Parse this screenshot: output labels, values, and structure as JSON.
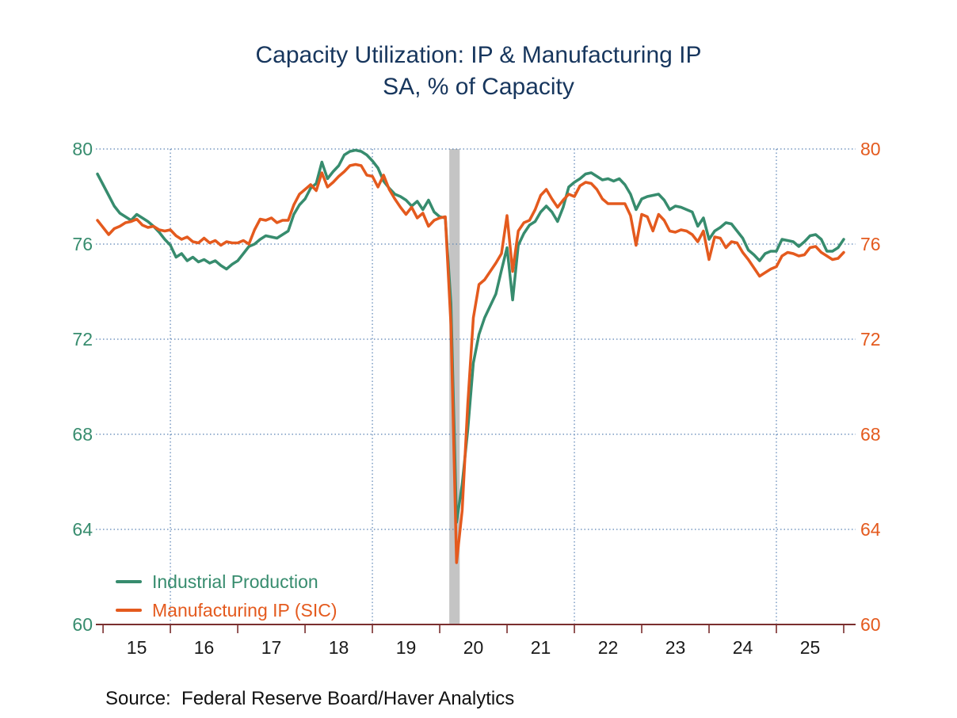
{
  "title": {
    "line1": "Capacity Utilization: IP & Manufacturing IP",
    "line2": "SA, % of Capacity"
  },
  "source_note": "Source:  Federal Reserve Board/Haver Analytics",
  "colors": {
    "title": "#17365D",
    "axis": "#7A2E2E",
    "gridline": "#5A82B4",
    "recession_band": "#C4C4C4",
    "x_tick_label": "#1A1A1A",
    "left_axis_label": "#378C6E",
    "right_axis_label": "#E45A1E",
    "series_ip": "#378C6E",
    "series_mfg": "#E45A1E"
  },
  "legend": [
    {
      "label": "Industrial Production",
      "color": "#378C6E"
    },
    {
      "label": "Manufacturing IP (SIC)",
      "color": "#E45A1E"
    }
  ],
  "chart_data": {
    "type": "line",
    "title": "Capacity Utilization: IP & Manufacturing IP",
    "subtitle": "SA, % of Capacity",
    "frequency": "monthly",
    "x_start": "2014-12",
    "x_end": "2026-01",
    "ylim": [
      60,
      80
    ],
    "y_ticks_left": [
      "80",
      "76",
      "72",
      "68",
      "64",
      "60"
    ],
    "y_ticks_right": [
      "80",
      "76",
      "72",
      "68",
      "64",
      "60"
    ],
    "y_tick_values": [
      80,
      76,
      72,
      68,
      64,
      60
    ],
    "x_tick_labels": [
      "15",
      "16",
      "17",
      "18",
      "19",
      "20",
      "21",
      "22",
      "23",
      "24",
      "25"
    ],
    "grid": {
      "h_values": [
        80,
        76,
        72,
        68,
        64
      ],
      "v_years": [
        2016,
        2019,
        2022,
        2025
      ],
      "style": "dotted"
    },
    "recession_band": {
      "from": "2020-02",
      "to": "2020-04"
    },
    "legend_position": "bottom-left-inside",
    "series": [
      {
        "name": "Industrial Production",
        "color": "#378C6E",
        "values": [
          78.95,
          78.5,
          78.05,
          77.6,
          77.3,
          77.15,
          77.0,
          77.25,
          77.1,
          76.95,
          76.75,
          76.5,
          76.2,
          75.95,
          75.45,
          75.6,
          75.3,
          75.45,
          75.25,
          75.35,
          75.2,
          75.3,
          75.1,
          74.95,
          75.15,
          75.3,
          75.6,
          75.9,
          76.0,
          76.2,
          76.35,
          76.3,
          76.25,
          76.4,
          76.55,
          77.25,
          77.65,
          77.9,
          78.35,
          78.55,
          79.45,
          78.75,
          79.05,
          79.3,
          79.75,
          79.9,
          79.95,
          79.9,
          79.75,
          79.5,
          79.2,
          78.65,
          78.35,
          78.1,
          78.0,
          77.85,
          77.6,
          77.8,
          77.45,
          77.85,
          77.35,
          77.15,
          77.1,
          73.5,
          64.3,
          65.9,
          68.2,
          71.0,
          72.2,
          72.9,
          73.4,
          73.9,
          74.9,
          75.85,
          73.65,
          75.95,
          76.45,
          76.8,
          76.95,
          77.35,
          77.6,
          77.35,
          76.95,
          77.55,
          78.4,
          78.6,
          78.75,
          78.95,
          79.0,
          78.85,
          78.7,
          78.75,
          78.65,
          78.75,
          78.5,
          78.1,
          77.45,
          77.9,
          78.0,
          78.05,
          78.1,
          77.85,
          77.45,
          77.6,
          77.55,
          77.45,
          77.35,
          76.75,
          77.1,
          76.2,
          76.55,
          76.7,
          76.9,
          76.85,
          76.55,
          76.25,
          75.75,
          75.55,
          75.3,
          75.6,
          75.7,
          75.7,
          76.2,
          76.15,
          76.1,
          75.9,
          76.1,
          76.35,
          76.4,
          76.2,
          75.7,
          75.7,
          75.85,
          76.2
        ]
      },
      {
        "name": "Manufacturing IP (SIC)",
        "color": "#E45A1E",
        "values": [
          77.0,
          76.7,
          76.4,
          76.65,
          76.75,
          76.9,
          76.95,
          77.05,
          76.8,
          76.7,
          76.75,
          76.6,
          76.55,
          76.6,
          76.35,
          76.2,
          76.3,
          76.1,
          76.05,
          76.25,
          76.05,
          76.15,
          75.95,
          76.1,
          76.05,
          76.05,
          76.15,
          76.0,
          76.6,
          77.05,
          77.0,
          77.1,
          76.9,
          77.0,
          77.0,
          77.65,
          78.1,
          78.3,
          78.5,
          78.25,
          79.0,
          78.4,
          78.6,
          78.85,
          79.05,
          79.3,
          79.35,
          79.3,
          78.9,
          78.85,
          78.4,
          78.9,
          78.3,
          77.9,
          77.55,
          77.25,
          77.55,
          77.1,
          77.3,
          76.75,
          77.0,
          77.1,
          77.15,
          72.6,
          62.6,
          64.8,
          69.3,
          72.9,
          74.3,
          74.5,
          74.85,
          75.2,
          75.6,
          77.2,
          74.85,
          76.55,
          76.9,
          77.0,
          77.45,
          78.05,
          78.3,
          77.9,
          77.55,
          77.85,
          78.1,
          78.0,
          78.45,
          78.6,
          78.55,
          78.3,
          77.9,
          77.7,
          77.7,
          77.7,
          77.7,
          77.2,
          75.95,
          77.25,
          77.15,
          76.55,
          77.25,
          77.0,
          76.55,
          76.5,
          76.6,
          76.55,
          76.4,
          76.1,
          76.55,
          75.35,
          76.3,
          76.25,
          75.85,
          76.1,
          76.05,
          75.65,
          75.35,
          75.0,
          74.65,
          74.8,
          74.95,
          75.05,
          75.5,
          75.65,
          75.6,
          75.5,
          75.55,
          75.85,
          75.9,
          75.65,
          75.5,
          75.35,
          75.4,
          75.65
        ]
      }
    ]
  }
}
